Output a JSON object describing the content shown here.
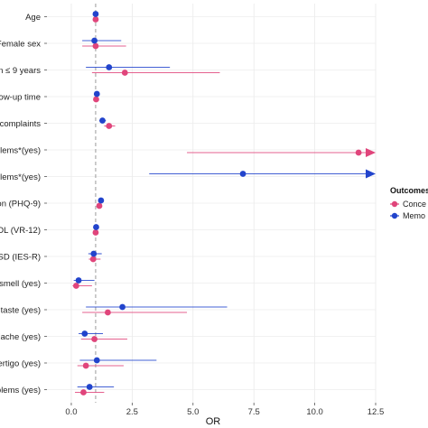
{
  "chart_data": {
    "type": "scatter",
    "subtype": "forest-plot",
    "xlabel": "OR",
    "ylabel": "",
    "xlim": [
      -1.0,
      12.5
    ],
    "x_ticks": [
      0.0,
      2.5,
      5.0,
      7.5,
      10.0,
      12.5
    ],
    "x_tick_labels": [
      "0.0",
      "2.5",
      "5.0",
      "7.5",
      "10.0",
      "12.5"
    ],
    "reference_line": 1.0,
    "grid": true,
    "legend": {
      "title": "Outcomes",
      "placement": "right",
      "entries": [
        "Conce",
        "Memo"
      ]
    },
    "categories": [
      "Age",
      "Female sex",
      "ion ≤ 9 years",
      "ollow-up time",
      "of complaints",
      "blems*(yes)",
      "blems*(yes)",
      "sion (PHQ-9)",
      "QOL (VR-12)",
      "TSD (IES-R)",
      "of smell (yes)",
      "f taste (yes)",
      "adache (yes)",
      "Vertigo (yes)",
      "oblems (yes)"
    ],
    "series": [
      {
        "name": "Conce",
        "color": "#e0457b",
        "values": [
          {
            "or": 1.0,
            "lo": 0.98,
            "hi": 1.02
          },
          {
            "or": 1.0,
            "lo": 0.45,
            "hi": 2.25
          },
          {
            "or": 2.2,
            "lo": 0.85,
            "hi": 6.1
          },
          {
            "or": 1.02,
            "lo": 0.95,
            "hi": 1.08
          },
          {
            "or": 1.55,
            "lo": 1.35,
            "hi": 1.8
          },
          {
            "or": 11.8,
            "lo": 4.75,
            "hi": 12.5,
            "hi_arrow": true
          },
          null,
          {
            "or": 1.15,
            "lo": 1.05,
            "hi": 1.25
          },
          {
            "or": 1.0,
            "lo": 0.96,
            "hi": 1.04
          },
          {
            "or": 0.9,
            "lo": 0.72,
            "hi": 1.2
          },
          {
            "or": 0.2,
            "lo": 0.05,
            "hi": 0.85
          },
          {
            "or": 1.5,
            "lo": 0.45,
            "hi": 4.75
          },
          {
            "or": 0.95,
            "lo": 0.4,
            "hi": 2.3
          },
          {
            "or": 0.6,
            "lo": 0.25,
            "hi": 2.15
          },
          {
            "or": 0.5,
            "lo": 0.15,
            "hi": 1.35
          }
        ]
      },
      {
        "name": "Memo",
        "color": "#2244cc",
        "values": [
          {
            "or": 1.0,
            "lo": 0.98,
            "hi": 1.02
          },
          {
            "or": 0.95,
            "lo": 0.45,
            "hi": 2.05
          },
          {
            "or": 1.55,
            "lo": 0.6,
            "hi": 4.05
          },
          {
            "or": 1.05,
            "lo": 1.0,
            "hi": 1.1
          },
          {
            "or": 1.28,
            "lo": 1.15,
            "hi": 1.42
          },
          null,
          {
            "or": 7.05,
            "lo": 3.2,
            "hi": 12.5,
            "hi_arrow": true
          },
          {
            "or": 1.22,
            "lo": 1.12,
            "hi": 1.32
          },
          {
            "or": 1.02,
            "lo": 0.98,
            "hi": 1.08
          },
          {
            "or": 0.92,
            "lo": 0.7,
            "hi": 1.25
          },
          {
            "or": 0.3,
            "lo": 0.1,
            "hi": 0.95
          },
          {
            "or": 2.1,
            "lo": 0.6,
            "hi": 6.4
          },
          {
            "or": 0.55,
            "lo": 0.3,
            "hi": 1.3
          },
          {
            "or": 1.05,
            "lo": 0.35,
            "hi": 3.5
          },
          {
            "or": 0.75,
            "lo": 0.25,
            "hi": 1.75
          }
        ]
      }
    ]
  }
}
